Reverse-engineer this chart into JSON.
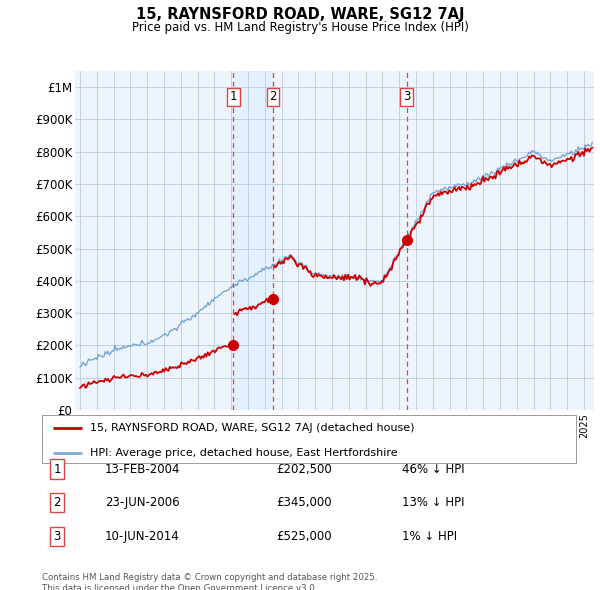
{
  "title": "15, RAYNSFORD ROAD, WARE, SG12 7AJ",
  "subtitle": "Price paid vs. HM Land Registry's House Price Index (HPI)",
  "legend_label_red": "15, RAYNSFORD ROAD, WARE, SG12 7AJ (detached house)",
  "legend_label_blue": "HPI: Average price, detached house, East Hertfordshire",
  "purchases": [
    {
      "num": 1,
      "date": "13-FEB-2004",
      "price": 202500,
      "pct": "46%",
      "dir": "↓",
      "year": 2004.12
    },
    {
      "num": 2,
      "date": "23-JUN-2006",
      "price": 345000,
      "pct": "13%",
      "dir": "↓",
      "year": 2006.48
    },
    {
      "num": 3,
      "date": "10-JUN-2014",
      "price": 525000,
      "pct": "1%",
      "dir": "↓",
      "year": 2014.44
    }
  ],
  "footer": "Contains HM Land Registry data © Crown copyright and database right 2025.\nThis data is licensed under the Open Government Licence v3.0.",
  "ylim": [
    0,
    1050000
  ],
  "yticks": [
    0,
    100000,
    200000,
    300000,
    400000,
    500000,
    600000,
    700000,
    800000,
    900000,
    1000000
  ],
  "ytick_labels": [
    "£0",
    "£100K",
    "£200K",
    "£300K",
    "£400K",
    "£500K",
    "£600K",
    "£700K",
    "£800K",
    "£900K",
    "£1M"
  ],
  "color_red": "#cc0000",
  "color_blue": "#6699cc",
  "color_blue_fill": "#ddeeff",
  "color_vline": "#dd4444",
  "shade_color": "#ddeeff",
  "background_chart": "#eef4fb",
  "background_fig": "#ffffff",
  "grid_color": "#bbccdd"
}
